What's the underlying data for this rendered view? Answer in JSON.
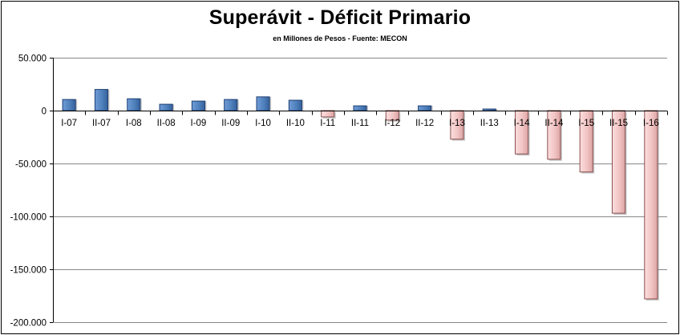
{
  "chart_data": {
    "type": "bar",
    "title": "Superávit - Déficit Primario",
    "subtitle": "en Millones de Pesos - Fuente: MECON",
    "xlabel": "",
    "ylabel": "",
    "categories": [
      "I-07",
      "II-07",
      "I-08",
      "II-08",
      "I-09",
      "II-09",
      "I-10",
      "II-10",
      "I-11",
      "II-11",
      "I-12",
      "II-12",
      "I-13",
      "II-13",
      "I-14",
      "II-14",
      "I-15",
      "II-15",
      "I-16"
    ],
    "values": [
      10500,
      20000,
      11200,
      6000,
      9000,
      10500,
      13000,
      9800,
      -6000,
      4500,
      -9000,
      4500,
      -27000,
      1500,
      -41000,
      -46000,
      -58000,
      -97000,
      -178000
    ],
    "ylim": [
      -200000,
      50000
    ],
    "yticks": [
      50000,
      0,
      -50000,
      -100000,
      -150000,
      -200000
    ],
    "ytick_labels": [
      "50.000",
      "0",
      "-50.000",
      "-100.000",
      "-150.000",
      "-200.000"
    ],
    "grid": true,
    "legend": "none",
    "colors": {
      "positive_fill": "#4f81bd",
      "positive_edge": "#1f3f73",
      "negative_fill": "#f2c4c4",
      "negative_edge": "#8b5050",
      "gridline": "#888888",
      "axis": "#000000"
    }
  }
}
